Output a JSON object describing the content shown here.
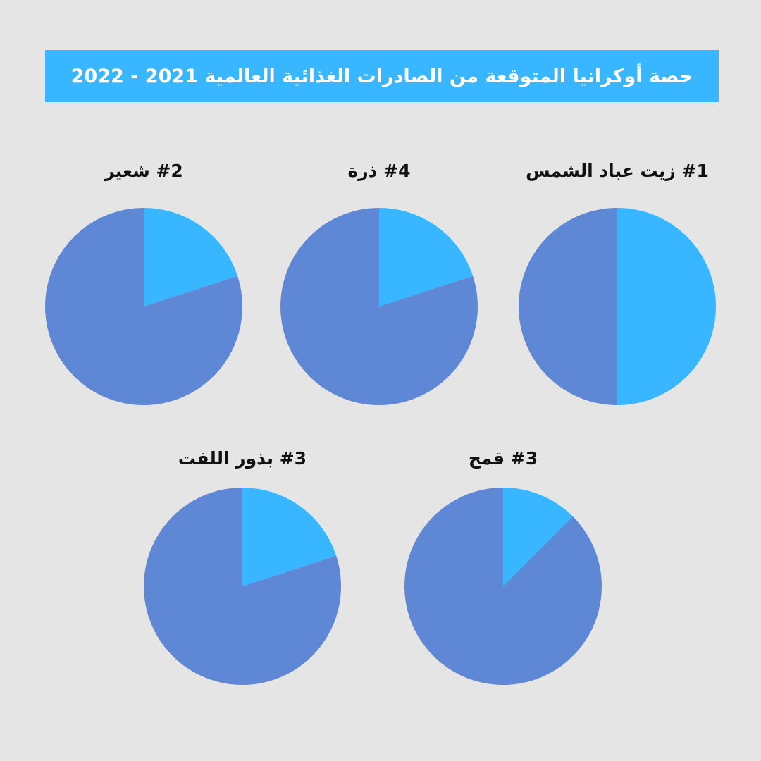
{
  "title": "حصة أوكرانيا المتوقعة من الصادرات الغذائية العالمية 2021 - 2022",
  "colors": {
    "background": "#e5e5e5",
    "banner": "#38b6ff",
    "share": "#38b6ff",
    "rest": "#5e88d6"
  },
  "chart_data": [
    {
      "type": "pie",
      "title": "#1 زيت عباد الشمس",
      "values": [
        50,
        50
      ]
    },
    {
      "type": "pie",
      "title": "#4 ذرة",
      "values": [
        20,
        80
      ]
    },
    {
      "type": "pie",
      "title": "#2 شعير",
      "values": [
        20,
        80
      ]
    },
    {
      "type": "pie",
      "title": "#3 قمح",
      "values": [
        12.5,
        87.5
      ]
    },
    {
      "type": "pie",
      "title": "#3 بذور اللفت",
      "values": [
        20,
        80
      ]
    }
  ]
}
